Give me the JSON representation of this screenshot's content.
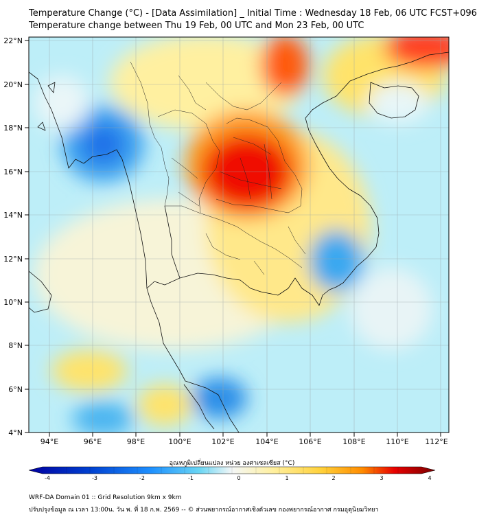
{
  "title_line1": "Temperature Change (°C) - [Data Assimilation] _ Initial Time : Wednesday 18 Feb, 06 UTC FCST+096",
  "title_line2": "Temperature change between Thu 19 Feb, 00 UTC and Mon 23 Feb, 00 UTC",
  "lat_labels": [
    "22°N",
    "20°N",
    "18°N",
    "16°N",
    "14°N",
    "12°N",
    "10°N",
    "8°N",
    "6°N",
    "4°N"
  ],
  "lon_labels": [
    "94°E",
    "96°E",
    "98°E",
    "100°E",
    "102°E",
    "104°E",
    "106°E",
    "108°E",
    "110°E",
    "112°E"
  ],
  "colorbar": {
    "label": "อุณหภูมิเปลี่ยนแปลง หน่วย องศาเซลเซียส (°C)",
    "ticks": [
      "-4",
      "-3",
      "-2",
      "-1",
      "0",
      "1",
      "2",
      "3",
      "4"
    ],
    "min": -4,
    "max": 4
  },
  "footer_line1": "WRF-DA Domain 01 :: Grid Resolution 9km x 9km",
  "footer_line2": "ปรับปรุงข้อมูล ณ เวลา 13:00น. วัน พ. ที่ 18 ก.พ. 2569 -- © ส่วนพยากรณ์อากาศเชิงตัวเลข กองพยากรณ์อากาศ กรมอุตุนิยมวิทยา",
  "colors": {
    "cold_dark": "#0000a0",
    "cold": "#1e90ff",
    "cool": "#5fd3f5",
    "neutral": "#f4f7f7",
    "warm": "#ffe36b",
    "hot": "#ff7f00",
    "very_hot": "#e80000",
    "hot_dark": "#7a0000"
  }
}
